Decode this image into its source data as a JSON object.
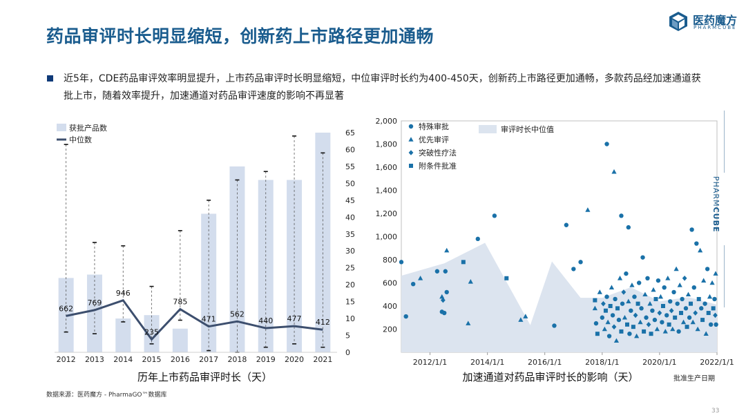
{
  "title": "药品审评时长明显缩短，创新药上市路径更加通畅",
  "logo": {
    "name": "医药魔方",
    "sub": "PHARMCUBE"
  },
  "description": "近5年，CDE药品审评效率明显提升，上市药品审评时长明显缩短，中位审评时长约为400-450天，创新药上市路径更加通畅，多款药品经加速通道获批上市，随着效率提升，加速通道对药品审评速度的影响不再显著",
  "source": "数据来源：医药魔方 - PharmaGO™数据库",
  "page_number": "33",
  "side_brand": {
    "light": "PHARM",
    "bold": "CUBE"
  },
  "colors": {
    "bar": "#d3dded",
    "line": "#3d4f6e",
    "accent": "#1a5c8e",
    "scatter": "#1a71a8",
    "area": "#dce4ef"
  },
  "chart_data": [
    {
      "type": "bar",
      "xlabel": "历年上市药品审评时长（天）",
      "categories": [
        "2012",
        "2013",
        "2014",
        "2015",
        "2016",
        "2017",
        "2018",
        "2019",
        "2020",
        "2021"
      ],
      "series": [
        {
          "name": "获批产品数",
          "values": [
            22,
            23,
            10,
            11,
            7,
            41,
            55,
            51,
            51,
            65
          ]
        },
        {
          "name": "中位数",
          "values": [
            662,
            769,
            946,
            235,
            785,
            471,
            562,
            440,
            477,
            412
          ]
        }
      ],
      "range_max": [
        61.5,
        32.5,
        31.5,
        19.5,
        36,
        45,
        51,
        53.5,
        64,
        59
      ],
      "range_min": [
        6,
        5.5,
        9,
        2.5,
        9.5,
        0.5,
        0,
        1.5,
        2.5,
        1.5
      ],
      "right_axis": {
        "ylim": [
          0,
          65
        ],
        "ticks": [
          "0",
          "5",
          "10",
          "15",
          "20",
          "25",
          "30",
          "35",
          "40",
          "45",
          "50",
          "55",
          "60",
          "65"
        ]
      },
      "line_scale_max": 4000,
      "data_labels": [
        "662",
        "769",
        "946",
        "235",
        "785",
        "471",
        "562",
        "440",
        "477",
        "412"
      ]
    },
    {
      "type": "scatter",
      "xlabel": "加速通道对药品审评时长的影响（天）",
      "x_unit_label": "批准生产日期",
      "x_ticks": [
        "2012/1/1",
        "2014/1/1",
        "2016/1/1",
        "2018/1/1",
        "2020/1/1",
        "2022/1/1"
      ],
      "xlim": [
        "2011-01-01",
        "2022-01-01"
      ],
      "ylim": [
        0,
        2000
      ],
      "y_ticks": [
        "2,000",
        "1,800",
        "1,600",
        "1,400",
        "1,200",
        "1,000",
        "800",
        "600",
        "400",
        "200"
      ],
      "legend": [
        {
          "name": "特殊审批",
          "marker": "circle"
        },
        {
          "name": "优先审评",
          "marker": "triangle"
        },
        {
          "name": "突破性疗法",
          "marker": "diamond"
        },
        {
          "name": "附条件批准",
          "marker": "square"
        }
      ],
      "area_legend": "审评时长中位值",
      "median_area": {
        "dates": [
          "2011-01-01",
          "2012-07-01",
          "2013-12-01",
          "2015-07-01",
          "2016-04-01",
          "2017-04-01",
          "2018-01-01",
          "2019-01-01",
          "2020-01-01",
          "2021-01-01",
          "2022-01-01"
        ],
        "values": [
          662,
          769,
          946,
          235,
          785,
          471,
          471,
          562,
          440,
          477,
          412
        ]
      },
      "points": [
        {
          "d": "2011-01-01",
          "v": 780,
          "m": "circle"
        },
        {
          "d": "2011-03-01",
          "v": 310,
          "m": "circle"
        },
        {
          "d": "2011-06-01",
          "v": 590,
          "m": "circle"
        },
        {
          "d": "2011-09-01",
          "v": 640,
          "m": "triangle"
        },
        {
          "d": "2012-04-01",
          "v": 700,
          "m": "circle"
        },
        {
          "d": "2012-06-01",
          "v": 350,
          "m": "circle"
        },
        {
          "d": "2012-07-01",
          "v": 340,
          "m": "circle"
        },
        {
          "d": "2012-07-15",
          "v": 700,
          "m": "circle"
        },
        {
          "d": "2012-08-01",
          "v": 880,
          "m": "triangle"
        },
        {
          "d": "2012-08-01",
          "v": 520,
          "m": "circle"
        },
        {
          "d": "2012-06-15",
          "v": 450,
          "m": "diamond"
        },
        {
          "d": "2012-06-01",
          "v": 480,
          "m": "triangle"
        },
        {
          "d": "2013-03-01",
          "v": 780,
          "m": "square"
        },
        {
          "d": "2013-06-01",
          "v": 610,
          "m": "triangle"
        },
        {
          "d": "2013-09-01",
          "v": 980,
          "m": "circle"
        },
        {
          "d": "2013-05-01",
          "v": 250,
          "m": "triangle"
        },
        {
          "d": "2014-04-01",
          "v": 1180,
          "m": "circle"
        },
        {
          "d": "2014-09-01",
          "v": 640,
          "m": "square"
        },
        {
          "d": "2015-03-01",
          "v": 280,
          "m": "triangle"
        },
        {
          "d": "2015-05-01",
          "v": 310,
          "m": "triangle"
        },
        {
          "d": "2016-05-01",
          "v": 230,
          "m": "circle"
        },
        {
          "d": "2016-10-01",
          "v": 1100,
          "m": "circle"
        },
        {
          "d": "2017-01-01",
          "v": 720,
          "m": "circle"
        },
        {
          "d": "2017-04-01",
          "v": 780,
          "m": "circle"
        },
        {
          "d": "2017-07-01",
          "v": 1230,
          "m": "triangle"
        },
        {
          "d": "2018-03-01",
          "v": 1800,
          "m": "circle"
        },
        {
          "d": "2018-06-01",
          "v": 1560,
          "m": "triangle"
        },
        {
          "d": "2018-09-01",
          "v": 1180,
          "m": "circle"
        },
        {
          "d": "2018-12-01",
          "v": 1080,
          "m": "circle"
        },
        {
          "d": "2019-06-01",
          "v": 820,
          "m": "circle"
        },
        {
          "d": "2017-10-01",
          "v": 450,
          "m": "square"
        },
        {
          "d": "2017-10-01",
          "v": 380,
          "m": "triangle"
        },
        {
          "d": "2017-10-15",
          "v": 250,
          "m": "circle"
        },
        {
          "d": "2017-11-01",
          "v": 160,
          "m": "square"
        },
        {
          "d": "2017-12-01",
          "v": 520,
          "m": "triangle"
        },
        {
          "d": "2018-01-01",
          "v": 300,
          "m": "circle"
        },
        {
          "d": "2018-01-15",
          "v": 420,
          "m": "diamond"
        },
        {
          "d": "2018-02-01",
          "v": 200,
          "m": "triangle"
        },
        {
          "d": "2018-02-15",
          "v": 360,
          "m": "square"
        },
        {
          "d": "2018-03-01",
          "v": 480,
          "m": "circle"
        },
        {
          "d": "2018-03-15",
          "v": 260,
          "m": "triangle"
        },
        {
          "d": "2018-04-01",
          "v": 140,
          "m": "circle"
        },
        {
          "d": "2018-04-15",
          "v": 400,
          "m": "square"
        },
        {
          "d": "2018-05-01",
          "v": 560,
          "m": "triangle"
        },
        {
          "d": "2018-05-15",
          "v": 320,
          "m": "circle"
        },
        {
          "d": "2018-06-01",
          "v": 220,
          "m": "diamond"
        },
        {
          "d": "2018-06-15",
          "v": 460,
          "m": "circle"
        },
        {
          "d": "2018-07-01",
          "v": 100,
          "m": "triangle"
        },
        {
          "d": "2018-07-15",
          "v": 380,
          "m": "square"
        },
        {
          "d": "2018-08-01",
          "v": 280,
          "m": "circle"
        },
        {
          "d": "2018-08-15",
          "v": 640,
          "m": "triangle"
        },
        {
          "d": "2018-09-01",
          "v": 180,
          "m": "square"
        },
        {
          "d": "2018-09-15",
          "v": 420,
          "m": "circle"
        },
        {
          "d": "2018-10-01",
          "v": 520,
          "m": "diamond"
        },
        {
          "d": "2018-10-15",
          "v": 300,
          "m": "triangle"
        },
        {
          "d": "2018-11-01",
          "v": 680,
          "m": "circle"
        },
        {
          "d": "2018-11-15",
          "v": 240,
          "m": "square"
        },
        {
          "d": "2018-12-01",
          "v": 440,
          "m": "triangle"
        },
        {
          "d": "2018-12-15",
          "v": 160,
          "m": "circle"
        },
        {
          "d": "2019-01-01",
          "v": 360,
          "m": "circle"
        },
        {
          "d": "2019-01-15",
          "v": 580,
          "m": "triangle"
        },
        {
          "d": "2019-02-01",
          "v": 220,
          "m": "square"
        },
        {
          "d": "2019-02-15",
          "v": 480,
          "m": "circle"
        },
        {
          "d": "2019-03-01",
          "v": 320,
          "m": "diamond"
        },
        {
          "d": "2019-03-15",
          "v": 140,
          "m": "triangle"
        },
        {
          "d": "2019-04-01",
          "v": 420,
          "m": "square"
        },
        {
          "d": "2019-04-15",
          "v": 600,
          "m": "circle"
        },
        {
          "d": "2019-05-01",
          "v": 260,
          "m": "triangle"
        },
        {
          "d": "2019-05-15",
          "v": 380,
          "m": "circle"
        },
        {
          "d": "2019-06-15",
          "v": 180,
          "m": "square"
        },
        {
          "d": "2019-07-01",
          "v": 500,
          "m": "triangle"
        },
        {
          "d": "2019-07-15",
          "v": 300,
          "m": "circle"
        },
        {
          "d": "2019-08-01",
          "v": 640,
          "m": "circle"
        },
        {
          "d": "2019-08-15",
          "v": 240,
          "m": "diamond"
        },
        {
          "d": "2019-09-01",
          "v": 420,
          "m": "triangle"
        },
        {
          "d": "2019-09-15",
          "v": 160,
          "m": "square"
        },
        {
          "d": "2019-10-01",
          "v": 360,
          "m": "circle"
        },
        {
          "d": "2019-10-15",
          "v": 540,
          "m": "triangle"
        },
        {
          "d": "2019-11-01",
          "v": 280,
          "m": "circle"
        },
        {
          "d": "2019-11-15",
          "v": 460,
          "m": "square"
        },
        {
          "d": "2019-12-01",
          "v": 200,
          "m": "triangle"
        },
        {
          "d": "2019-12-15",
          "v": 620,
          "m": "circle"
        },
        {
          "d": "2020-01-01",
          "v": 340,
          "m": "diamond"
        },
        {
          "d": "2020-01-15",
          "v": 480,
          "m": "triangle"
        },
        {
          "d": "2020-02-01",
          "v": 260,
          "m": "circle"
        },
        {
          "d": "2020-02-15",
          "v": 400,
          "m": "square"
        },
        {
          "d": "2020-03-01",
          "v": 560,
          "m": "circle"
        },
        {
          "d": "2020-03-15",
          "v": 180,
          "m": "triangle"
        },
        {
          "d": "2020-04-01",
          "v": 320,
          "m": "circle"
        },
        {
          "d": "2020-04-15",
          "v": 640,
          "m": "triangle"
        },
        {
          "d": "2020-05-01",
          "v": 240,
          "m": "square"
        },
        {
          "d": "2020-05-15",
          "v": 440,
          "m": "circle"
        },
        {
          "d": "2020-06-01",
          "v": 360,
          "m": "diamond"
        },
        {
          "d": "2020-06-15",
          "v": 200,
          "m": "triangle"
        },
        {
          "d": "2020-07-01",
          "v": 520,
          "m": "circle"
        },
        {
          "d": "2020-07-15",
          "v": 300,
          "m": "square"
        },
        {
          "d": "2020-08-01",
          "v": 720,
          "m": "triangle"
        },
        {
          "d": "2020-08-15",
          "v": 420,
          "m": "circle"
        },
        {
          "d": "2020-09-01",
          "v": 180,
          "m": "circle"
        },
        {
          "d": "2020-09-15",
          "v": 580,
          "m": "triangle"
        },
        {
          "d": "2020-10-01",
          "v": 340,
          "m": "square"
        },
        {
          "d": "2020-10-15",
          "v": 460,
          "m": "circle"
        },
        {
          "d": "2020-11-01",
          "v": 260,
          "m": "triangle"
        },
        {
          "d": "2020-11-15",
          "v": 640,
          "m": "diamond"
        },
        {
          "d": "2020-12-01",
          "v": 380,
          "m": "circle"
        },
        {
          "d": "2020-12-15",
          "v": 220,
          "m": "square"
        },
        {
          "d": "2021-01-01",
          "v": 500,
          "m": "triangle"
        },
        {
          "d": "2021-01-15",
          "v": 300,
          "m": "circle"
        },
        {
          "d": "2021-02-01",
          "v": 420,
          "m": "square"
        },
        {
          "d": "2021-02-15",
          "v": 1060,
          "m": "circle"
        },
        {
          "d": "2021-03-01",
          "v": 260,
          "m": "triangle"
        },
        {
          "d": "2021-03-15",
          "v": 560,
          "m": "circle"
        },
        {
          "d": "2021-04-01",
          "v": 340,
          "m": "diamond"
        },
        {
          "d": "2021-04-15",
          "v": 940,
          "m": "circle"
        },
        {
          "d": "2021-05-01",
          "v": 200,
          "m": "triangle"
        },
        {
          "d": "2021-05-15",
          "v": 460,
          "m": "square"
        },
        {
          "d": "2021-06-01",
          "v": 880,
          "m": "triangle"
        },
        {
          "d": "2021-06-15",
          "v": 380,
          "m": "circle"
        },
        {
          "d": "2021-07-01",
          "v": 280,
          "m": "square"
        },
        {
          "d": "2021-07-15",
          "v": 620,
          "m": "triangle"
        },
        {
          "d": "2021-08-01",
          "v": 420,
          "m": "circle"
        },
        {
          "d": "2021-08-15",
          "v": 160,
          "m": "triangle"
        },
        {
          "d": "2021-09-01",
          "v": 720,
          "m": "circle"
        },
        {
          "d": "2021-09-15",
          "v": 340,
          "m": "square"
        },
        {
          "d": "2021-10-01",
          "v": 480,
          "m": "triangle"
        },
        {
          "d": "2021-10-15",
          "v": 240,
          "m": "circle"
        },
        {
          "d": "2021-11-01",
          "v": 600,
          "m": "triangle"
        },
        {
          "d": "2021-11-15",
          "v": 380,
          "m": "square"
        },
        {
          "d": "2021-12-01",
          "v": 460,
          "m": "circle"
        },
        {
          "d": "2021-12-15",
          "v": 680,
          "m": "triangle"
        },
        {
          "d": "2021-12-20",
          "v": 240,
          "m": "circle"
        },
        {
          "d": "2021-12-10",
          "v": 320,
          "m": "diamond"
        }
      ]
    }
  ]
}
